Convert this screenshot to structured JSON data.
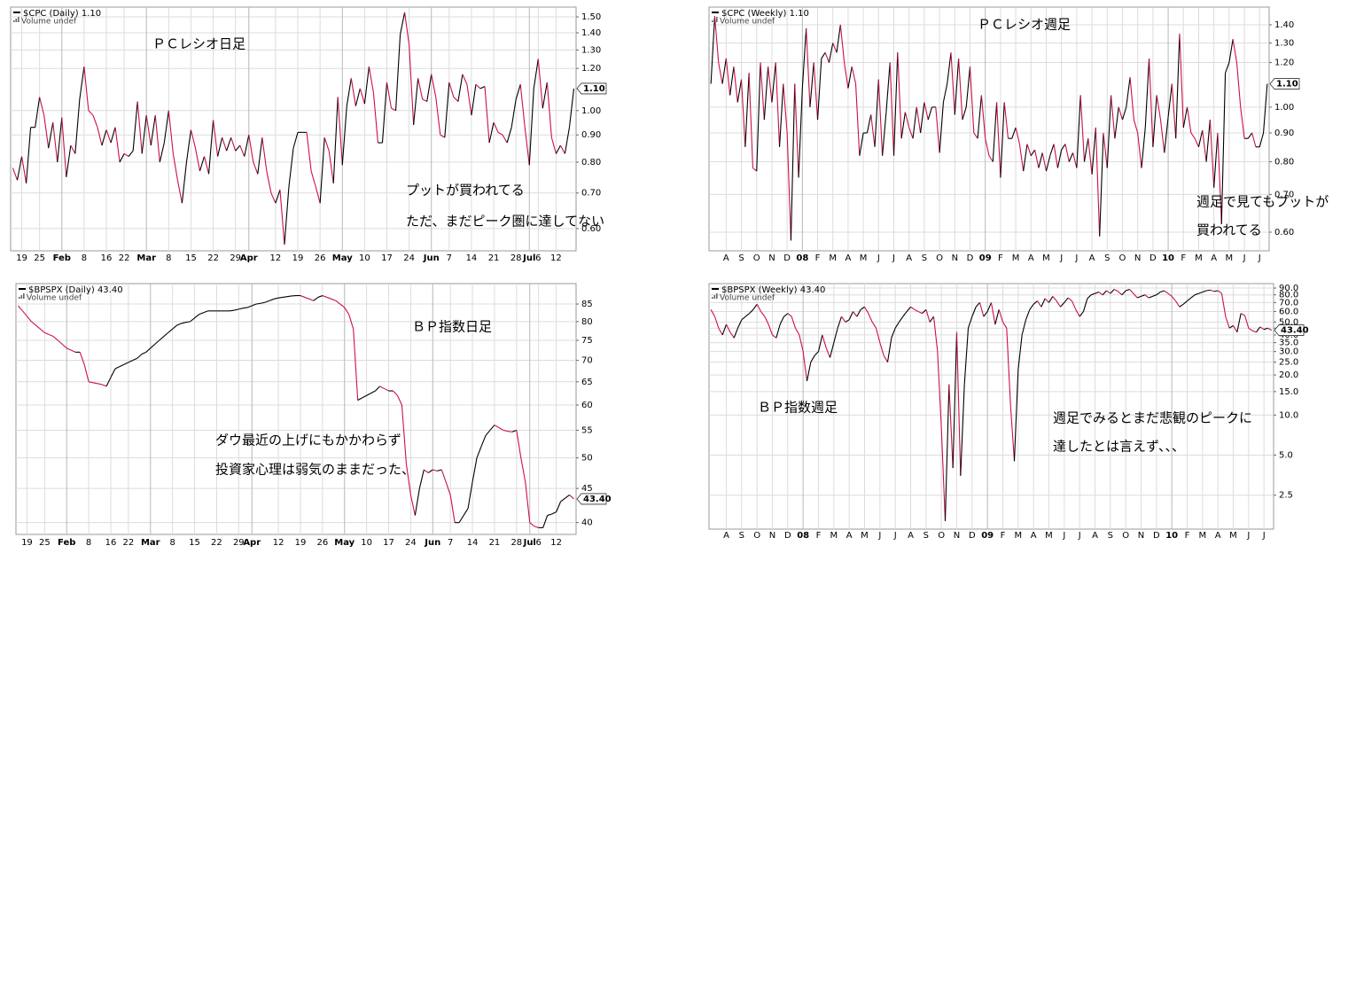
{
  "chart_data": [
    {
      "type": "line",
      "title": "$CPC (Daily) 1.10",
      "volume_label": "Volume undef",
      "annotations": [
        "ＰＣレシオ日足",
        "プットが買われてる",
        "ただ、まだピーク圏に達してない"
      ],
      "log_scale": true,
      "grid": true,
      "up_color": "#000000",
      "down_color": "#cc1144",
      "ylim": [
        0.545,
        1.565
      ],
      "yticks": [
        {
          "value": 1.5,
          "label": "1.50"
        },
        {
          "value": 1.4,
          "label": "1.40"
        },
        {
          "value": 1.3,
          "label": "1.30"
        },
        {
          "value": 1.2,
          "label": "1.20"
        },
        {
          "value": 1.0,
          "label": "1.00"
        },
        {
          "value": 0.9,
          "label": "0.90"
        },
        {
          "value": 0.8,
          "label": "0.80"
        },
        {
          "value": 0.7,
          "label": "0.70"
        },
        {
          "value": 0.6,
          "label": "0.60"
        }
      ],
      "last_value": {
        "value": 1.1,
        "label": "1.10"
      },
      "categories": [
        null,
        null,
        "19",
        null,
        null,
        null,
        "25",
        null,
        null,
        null,
        null,
        "Feb",
        null,
        null,
        null,
        null,
        "8",
        null,
        null,
        null,
        null,
        "16",
        null,
        null,
        null,
        "22",
        null,
        null,
        null,
        null,
        "Mar",
        null,
        null,
        null,
        null,
        "8",
        null,
        null,
        null,
        null,
        "15",
        null,
        null,
        null,
        null,
        "22",
        null,
        null,
        null,
        null,
        "29",
        null,
        null,
        "Apr",
        null,
        null,
        null,
        null,
        null,
        "12",
        null,
        null,
        null,
        null,
        "19",
        null,
        null,
        null,
        null,
        "26",
        null,
        null,
        null,
        null,
        "May",
        null,
        null,
        null,
        null,
        "10",
        null,
        null,
        null,
        null,
        "17",
        null,
        null,
        null,
        null,
        "24",
        null,
        null,
        null,
        null,
        "Jun",
        null,
        null,
        null,
        "7",
        null,
        null,
        null,
        null,
        "14",
        null,
        null,
        null,
        null,
        "21",
        null,
        null,
        null,
        null,
        "28",
        null,
        null,
        "Jul",
        null,
        "6",
        null,
        null,
        null,
        "12",
        null,
        null,
        null,
        null
      ],
      "values": [
        0.78,
        0.74,
        0.82,
        0.73,
        0.93,
        0.93,
        1.06,
        0.98,
        0.85,
        0.95,
        0.8,
        0.97,
        0.75,
        0.86,
        0.83,
        1.05,
        1.21,
        1.0,
        0.98,
        0.93,
        0.86,
        0.92,
        0.87,
        0.93,
        0.8,
        0.83,
        0.82,
        0.84,
        1.04,
        0.83,
        0.98,
        0.86,
        0.98,
        0.8,
        0.87,
        1.0,
        0.83,
        0.74,
        0.67,
        0.8,
        0.92,
        0.85,
        0.77,
        0.82,
        0.76,
        0.96,
        0.82,
        0.89,
        0.84,
        0.89,
        0.84,
        0.86,
        0.82,
        0.9,
        0.8,
        0.76,
        0.89,
        0.77,
        0.7,
        0.67,
        0.71,
        0.56,
        0.72,
        0.85,
        0.91,
        0.91,
        0.91,
        0.77,
        0.72,
        0.67,
        0.89,
        0.84,
        0.73,
        1.06,
        0.79,
        1.02,
        1.15,
        1.02,
        1.1,
        1.03,
        1.21,
        1.08,
        0.87,
        0.87,
        1.13,
        1.01,
        1.0,
        1.39,
        1.53,
        1.33,
        0.94,
        1.15,
        1.05,
        1.04,
        1.17,
        1.06,
        0.9,
        0.89,
        1.13,
        1.06,
        1.04,
        1.17,
        1.12,
        0.98,
        1.12,
        1.1,
        1.11,
        0.87,
        0.95,
        0.91,
        0.9,
        0.87,
        0.93,
        1.05,
        1.12,
        0.93,
        0.79,
        1.1,
        1.25,
        1.01,
        1.13,
        0.89,
        0.83,
        0.86,
        0.83,
        0.93,
        1.1
      ]
    },
    {
      "type": "line",
      "title": "$CPC (Weekly) 1.10",
      "volume_label": "Volume undef",
      "annotations": [
        "ＰＣレシオ週足",
        "週足で見てもプットが",
        "買われてる"
      ],
      "log_scale": true,
      "grid": true,
      "up_color": "#000000",
      "down_color": "#cc1144",
      "ylim": [
        0.556,
        1.505
      ],
      "yticks": [
        {
          "value": 1.4,
          "label": "1.40"
        },
        {
          "value": 1.3,
          "label": "1.30"
        },
        {
          "value": 1.2,
          "label": "1.20"
        },
        {
          "value": 1.0,
          "label": "1.00"
        },
        {
          "value": 0.9,
          "label": "0.90"
        },
        {
          "value": 0.8,
          "label": "0.80"
        },
        {
          "value": 0.7,
          "label": "0.70"
        },
        {
          "value": 0.6,
          "label": "0.60"
        }
      ],
      "last_value": {
        "value": 1.1,
        "label": "1.10"
      },
      "categories": [
        null,
        null,
        null,
        null,
        "A",
        null,
        null,
        null,
        "S",
        null,
        null,
        null,
        "O",
        null,
        null,
        null,
        "N",
        null,
        null,
        null,
        "D",
        null,
        null,
        null,
        "08",
        null,
        null,
        null,
        "F",
        null,
        null,
        null,
        "M",
        null,
        null,
        null,
        "A",
        null,
        null,
        null,
        "M",
        null,
        null,
        null,
        "J",
        null,
        null,
        null,
        "J",
        null,
        null,
        null,
        "A",
        null,
        null,
        null,
        "S",
        null,
        null,
        null,
        "O",
        null,
        null,
        null,
        "N",
        null,
        null,
        null,
        "D",
        null,
        null,
        null,
        "09",
        null,
        null,
        null,
        "F",
        null,
        null,
        null,
        "M",
        null,
        null,
        null,
        "A",
        null,
        null,
        null,
        "M",
        null,
        null,
        null,
        "J",
        null,
        null,
        null,
        "J",
        null,
        null,
        null,
        "A",
        null,
        null,
        null,
        "S",
        null,
        null,
        null,
        "O",
        null,
        null,
        null,
        "N",
        null,
        null,
        null,
        "D",
        null,
        null,
        null,
        "10",
        null,
        null,
        null,
        "F",
        null,
        null,
        null,
        "M",
        null,
        null,
        null,
        "A",
        null,
        null,
        null,
        "M",
        null,
        null,
        null,
        "J",
        null,
        null,
        null,
        "J",
        null,
        null
      ],
      "values": [
        1.1,
        1.45,
        1.2,
        1.1,
        1.22,
        1.05,
        1.18,
        1.02,
        1.12,
        0.85,
        1.15,
        0.78,
        0.77,
        1.2,
        0.95,
        1.18,
        1.02,
        1.2,
        0.85,
        1.1,
        0.9,
        0.58,
        1.1,
        0.75,
        1.08,
        1.38,
        1.0,
        1.2,
        0.95,
        1.22,
        1.25,
        1.2,
        1.3,
        1.25,
        1.4,
        1.2,
        1.08,
        1.18,
        1.1,
        0.82,
        0.9,
        0.9,
        0.97,
        0.85,
        1.12,
        0.82,
        0.98,
        1.2,
        0.82,
        1.25,
        0.88,
        0.98,
        0.92,
        0.88,
        1.0,
        0.9,
        1.02,
        0.95,
        1.0,
        1.0,
        0.83,
        1.02,
        1.1,
        1.25,
        0.97,
        1.22,
        0.95,
        1.0,
        1.18,
        0.9,
        0.88,
        1.05,
        0.88,
        0.82,
        0.8,
        1.02,
        0.75,
        1.02,
        0.88,
        0.88,
        0.92,
        0.86,
        0.77,
        0.86,
        0.82,
        0.84,
        0.78,
        0.83,
        0.77,
        0.82,
        0.86,
        0.78,
        0.84,
        0.86,
        0.8,
        0.83,
        0.78,
        1.05,
        0.8,
        0.88,
        0.76,
        0.92,
        0.59,
        0.9,
        0.78,
        1.05,
        0.88,
        1.0,
        0.95,
        1.0,
        1.13,
        0.95,
        0.9,
        0.78,
        0.92,
        1.22,
        0.85,
        1.05,
        0.95,
        0.83,
        0.96,
        1.1,
        0.88,
        1.35,
        0.92,
        1.0,
        0.9,
        0.88,
        0.85,
        0.91,
        0.8,
        0.95,
        0.72,
        0.9,
        0.62,
        1.15,
        1.2,
        1.32,
        1.2,
        1.0,
        0.88,
        0.88,
        0.9,
        0.85,
        0.85,
        0.9,
        1.1
      ]
    },
    {
      "type": "line",
      "title": "$BPSPX (Daily) 43.40",
      "volume_label": "Volume undef",
      "annotations": [
        "ＢＰ指数日足",
        "ダウ最近の上げにもかかわらず",
        "投資家心理は弱気のままだった、"
      ],
      "log_scale": true,
      "grid": true,
      "up_color": "#000000",
      "down_color": "#cc1144",
      "ylim": [
        38.4,
        91.2
      ],
      "yticks": [
        85,
        80,
        75,
        70,
        65,
        60,
        55,
        50,
        45,
        40
      ],
      "last_value": {
        "value": 43.4,
        "label": "43.40"
      },
      "categories": [
        null,
        null,
        "19",
        null,
        null,
        null,
        "25",
        null,
        null,
        null,
        null,
        "Feb",
        null,
        null,
        null,
        null,
        "8",
        null,
        null,
        null,
        null,
        "16",
        null,
        null,
        null,
        "22",
        null,
        null,
        null,
        null,
        "Mar",
        null,
        null,
        null,
        null,
        "8",
        null,
        null,
        null,
        null,
        "15",
        null,
        null,
        null,
        null,
        "22",
        null,
        null,
        null,
        null,
        "29",
        null,
        null,
        "Apr",
        null,
        null,
        null,
        null,
        null,
        "12",
        null,
        null,
        null,
        null,
        "19",
        null,
        null,
        null,
        null,
        "26",
        null,
        null,
        null,
        null,
        "May",
        null,
        null,
        null,
        null,
        "10",
        null,
        null,
        null,
        null,
        "17",
        null,
        null,
        null,
        null,
        "24",
        null,
        null,
        null,
        null,
        "Jun",
        null,
        null,
        null,
        "7",
        null,
        null,
        null,
        null,
        "14",
        null,
        null,
        null,
        null,
        "21",
        null,
        null,
        null,
        null,
        "28",
        null,
        null,
        "Jul",
        null,
        "6",
        null,
        null,
        null,
        "12",
        null,
        null,
        null,
        null
      ],
      "values": [
        84.5,
        83,
        81.5,
        80,
        79,
        78,
        77,
        76.5,
        76,
        75,
        74,
        73,
        72.5,
        72,
        72,
        69,
        65,
        64.8,
        64.6,
        64.4,
        64,
        66,
        68,
        68.5,
        69,
        69.5,
        70,
        70.5,
        71.5,
        72,
        73,
        74,
        75,
        76,
        77,
        78,
        79,
        79.5,
        79.8,
        80,
        81,
        82,
        82.5,
        83,
        83,
        83,
        83,
        83,
        83,
        83.2,
        83.5,
        83.8,
        84,
        84.5,
        85,
        85.2,
        85.5,
        86,
        86.5,
        86.8,
        87,
        87.2,
        87.4,
        87.5,
        87.5,
        87,
        86.5,
        86,
        87,
        87.5,
        87,
        86.5,
        86,
        85,
        84,
        82,
        78,
        61,
        61.5,
        62,
        62.5,
        63,
        64,
        63.5,
        63,
        63,
        62,
        60,
        49,
        44,
        41,
        45,
        48,
        47.5,
        48,
        47.8,
        48,
        46,
        44,
        40,
        40,
        41,
        42,
        46,
        50,
        52,
        54,
        55,
        56,
        55.5,
        55,
        54.8,
        54.7,
        55,
        50,
        46,
        40,
        39.5,
        39.3,
        39.3,
        41,
        41.2,
        41.5,
        43,
        43.5,
        44,
        43.4
      ]
    },
    {
      "type": "line",
      "title": "$BPSPX (Weekly) 43.40",
      "volume_label": "Volume undef",
      "annotations": [
        "ＢＰ指数週足",
        "週足でみるとまだ悲観のピークに",
        "達したとは言えず、、、"
      ],
      "log_scale": true,
      "grid": true,
      "up_color": "#000000",
      "down_color": "#cc1144",
      "ylim": [
        1.39,
        97.2
      ],
      "yticks": [
        {
          "value": 90,
          "label": "90.0"
        },
        {
          "value": 80,
          "label": "80.0"
        },
        {
          "value": 70,
          "label": "70.0"
        },
        {
          "value": 60,
          "label": "60.0"
        },
        {
          "value": 50,
          "label": "50.0"
        },
        {
          "value": 45,
          "label": "45.0"
        },
        {
          "value": 40,
          "label": "40.0"
        },
        {
          "value": 35,
          "label": "35.0"
        },
        {
          "value": 30,
          "label": "30.0"
        },
        {
          "value": 25,
          "label": "25.0"
        },
        {
          "value": 20,
          "label": "20.0"
        },
        {
          "value": 15,
          "label": "15.0"
        },
        {
          "value": 10,
          "label": "10.0"
        },
        {
          "value": 5,
          "label": "5.0"
        },
        2.5
      ],
      "last_value": {
        "value": 43.4,
        "label": "43.40"
      },
      "categories": [
        null,
        null,
        null,
        null,
        "A",
        null,
        null,
        null,
        "S",
        null,
        null,
        null,
        "O",
        null,
        null,
        null,
        "N",
        null,
        null,
        null,
        "D",
        null,
        null,
        null,
        "08",
        null,
        null,
        null,
        "F",
        null,
        null,
        null,
        "M",
        null,
        null,
        null,
        "A",
        null,
        null,
        null,
        "M",
        null,
        null,
        null,
        "J",
        null,
        null,
        null,
        "J",
        null,
        null,
        null,
        "A",
        null,
        null,
        null,
        "S",
        null,
        null,
        null,
        "O",
        null,
        null,
        null,
        "N",
        null,
        null,
        null,
        "D",
        null,
        null,
        null,
        "09",
        null,
        null,
        null,
        "F",
        null,
        null,
        null,
        "M",
        null,
        null,
        null,
        "A",
        null,
        null,
        null,
        "M",
        null,
        null,
        null,
        "J",
        null,
        null,
        null,
        "J",
        null,
        null,
        null,
        "A",
        null,
        null,
        null,
        "S",
        null,
        null,
        null,
        "O",
        null,
        null,
        null,
        "N",
        null,
        null,
        null,
        "D",
        null,
        null,
        null,
        "10",
        null,
        null,
        null,
        "F",
        null,
        null,
        null,
        "M",
        null,
        null,
        null,
        "A",
        null,
        null,
        null,
        "M",
        null,
        null,
        null,
        "J",
        null,
        null,
        null,
        "J",
        null,
        null
      ],
      "values": [
        62,
        55,
        45,
        40,
        48,
        42,
        38,
        45,
        52,
        55,
        58,
        62,
        68,
        60,
        55,
        48,
        40,
        38,
        48,
        55,
        58,
        55,
        45,
        40,
        30,
        18,
        25,
        28,
        30,
        40,
        32,
        27,
        35,
        45,
        55,
        50,
        52,
        60,
        55,
        62,
        65,
        58,
        50,
        45,
        35,
        28,
        25,
        38,
        45,
        50,
        55,
        60,
        65,
        62,
        60,
        58,
        62,
        50,
        55,
        30,
        8,
        1.6,
        17,
        4,
        42,
        3.5,
        17,
        45,
        55,
        65,
        70,
        55,
        60,
        70,
        48,
        62,
        50,
        45,
        12,
        4.5,
        22,
        40,
        52,
        62,
        68,
        72,
        65,
        75,
        70,
        78,
        72,
        65,
        70,
        76,
        72,
        62,
        55,
        60,
        75,
        80,
        82,
        84,
        80,
        86,
        82,
        88,
        85,
        80,
        86,
        88,
        82,
        76,
        78,
        80,
        76,
        78,
        80,
        84,
        86,
        82,
        78,
        72,
        65,
        68,
        72,
        76,
        80,
        82,
        84,
        86,
        87,
        85,
        86,
        82,
        55,
        45,
        47,
        42,
        58,
        56,
        45,
        43,
        42,
        46,
        44,
        45,
        43.4
      ]
    }
  ]
}
